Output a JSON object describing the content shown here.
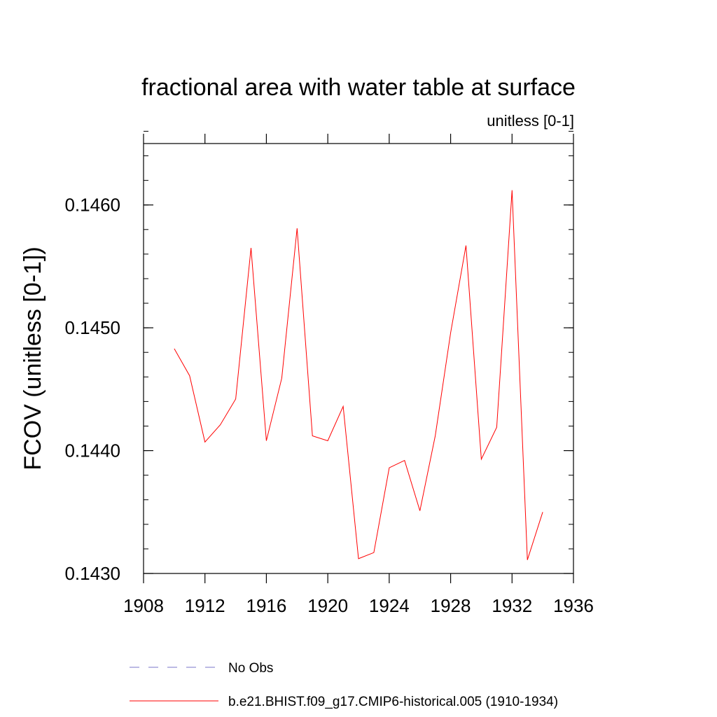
{
  "chart_data": {
    "type": "line",
    "title": "fractional area with water table at surface",
    "subtitle": "unitless [0-1]",
    "ylabel": "FCOV  (unitless [0-1])",
    "xlabel": "",
    "xlim": [
      1908,
      1936
    ],
    "ylim": [
      0.143,
      0.1465
    ],
    "x_ticks": [
      "1908",
      "1912",
      "1916",
      "1920",
      "1924",
      "1928",
      "1932",
      "1936"
    ],
    "y_ticks": [
      "0.1430",
      "0.1440",
      "0.1450",
      "0.1460"
    ],
    "x_tick_values": [
      1908,
      1912,
      1916,
      1920,
      1924,
      1928,
      1932,
      1936
    ],
    "y_tick_values": [
      0.143,
      0.144,
      0.145,
      0.146
    ],
    "y_minor_step": 0.0002,
    "grid": false,
    "legend_position": "bottom",
    "series": [
      {
        "name": "b.e21.BHIST.f09_g17.CMIP6-historical.005 (1910-1934)",
        "color": "#ff0000",
        "style": "solid",
        "x": [
          1910,
          1911,
          1912,
          1913,
          1914,
          1915,
          1916,
          1917,
          1918,
          1919,
          1920,
          1921,
          1922,
          1923,
          1924,
          1925,
          1926,
          1927,
          1928,
          1929,
          1930,
          1931,
          1932,
          1933,
          1934
        ],
        "y": [
          0.14483,
          0.14461,
          0.14407,
          0.14421,
          0.14442,
          0.14565,
          0.14408,
          0.14459,
          0.14581,
          0.14412,
          0.14408,
          0.14436,
          0.14312,
          0.14317,
          0.14386,
          0.14392,
          0.14351,
          0.14412,
          0.14496,
          0.14567,
          0.14393,
          0.14419,
          0.14612,
          0.14311,
          0.1435
        ]
      }
    ],
    "legend": [
      {
        "label": "No Obs",
        "color": "#7a74c9",
        "style": "dashed"
      },
      {
        "label": "b.e21.BHIST.f09_g17.CMIP6-historical.005 (1910-1934)",
        "color": "#ff0000",
        "style": "solid"
      }
    ]
  }
}
